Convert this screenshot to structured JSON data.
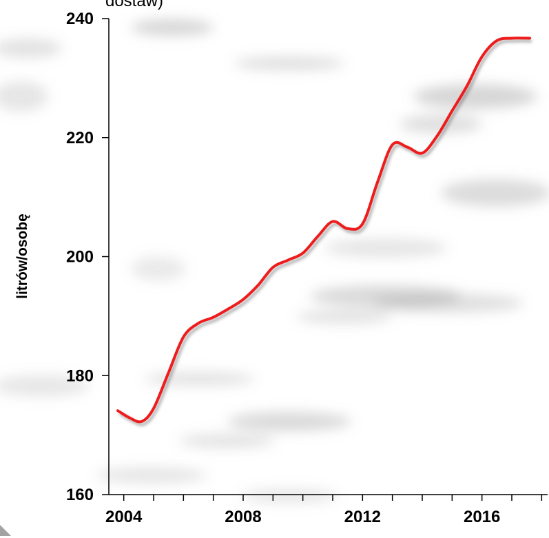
{
  "chart_data": {
    "type": "line",
    "title": "dostaw)",
    "ylabel": "litrów/osobę",
    "xlabel": "",
    "xlim": [
      2003.5,
      2018.2
    ],
    "ylim": [
      160,
      240
    ],
    "x_tick_labels": [
      "2004",
      "2008",
      "2012",
      "2016"
    ],
    "x_tick_values": [
      2004,
      2008,
      2012,
      2016
    ],
    "x_minor_ticks": [
      2004,
      2005,
      2006,
      2007,
      2008,
      2009,
      2010,
      2011,
      2012,
      2013,
      2014,
      2015,
      2016,
      2017,
      2018
    ],
    "y_tick_labels": [
      "160",
      "180",
      "200",
      "220",
      "240"
    ],
    "y_tick_values": [
      160,
      180,
      200,
      220,
      240
    ],
    "grid": false,
    "legend": "none",
    "series": [
      {
        "color": "#ee1c1c",
        "x": [
          2003.8,
          2004.2,
          2004.6,
          2005,
          2005.5,
          2006,
          2006.5,
          2007,
          2007.5,
          2008,
          2008.5,
          2009,
          2009.5,
          2010,
          2010.5,
          2011,
          2011.5,
          2012,
          2012.5,
          2013,
          2013.5,
          2014,
          2014.5,
          2015,
          2015.5,
          2016,
          2016.5,
          2017,
          2017.6
        ],
        "values": [
          174.1,
          172.9,
          172.3,
          174.5,
          180.5,
          186.5,
          188.8,
          189.8,
          191.2,
          192.8,
          195.2,
          198.2,
          199.4,
          200.6,
          203.4,
          205.9,
          204.7,
          205.5,
          212.5,
          218.8,
          218.4,
          217.4,
          220.3,
          224.5,
          228.7,
          233.6,
          236.3,
          236.7,
          236.7
        ]
      }
    ]
  }
}
